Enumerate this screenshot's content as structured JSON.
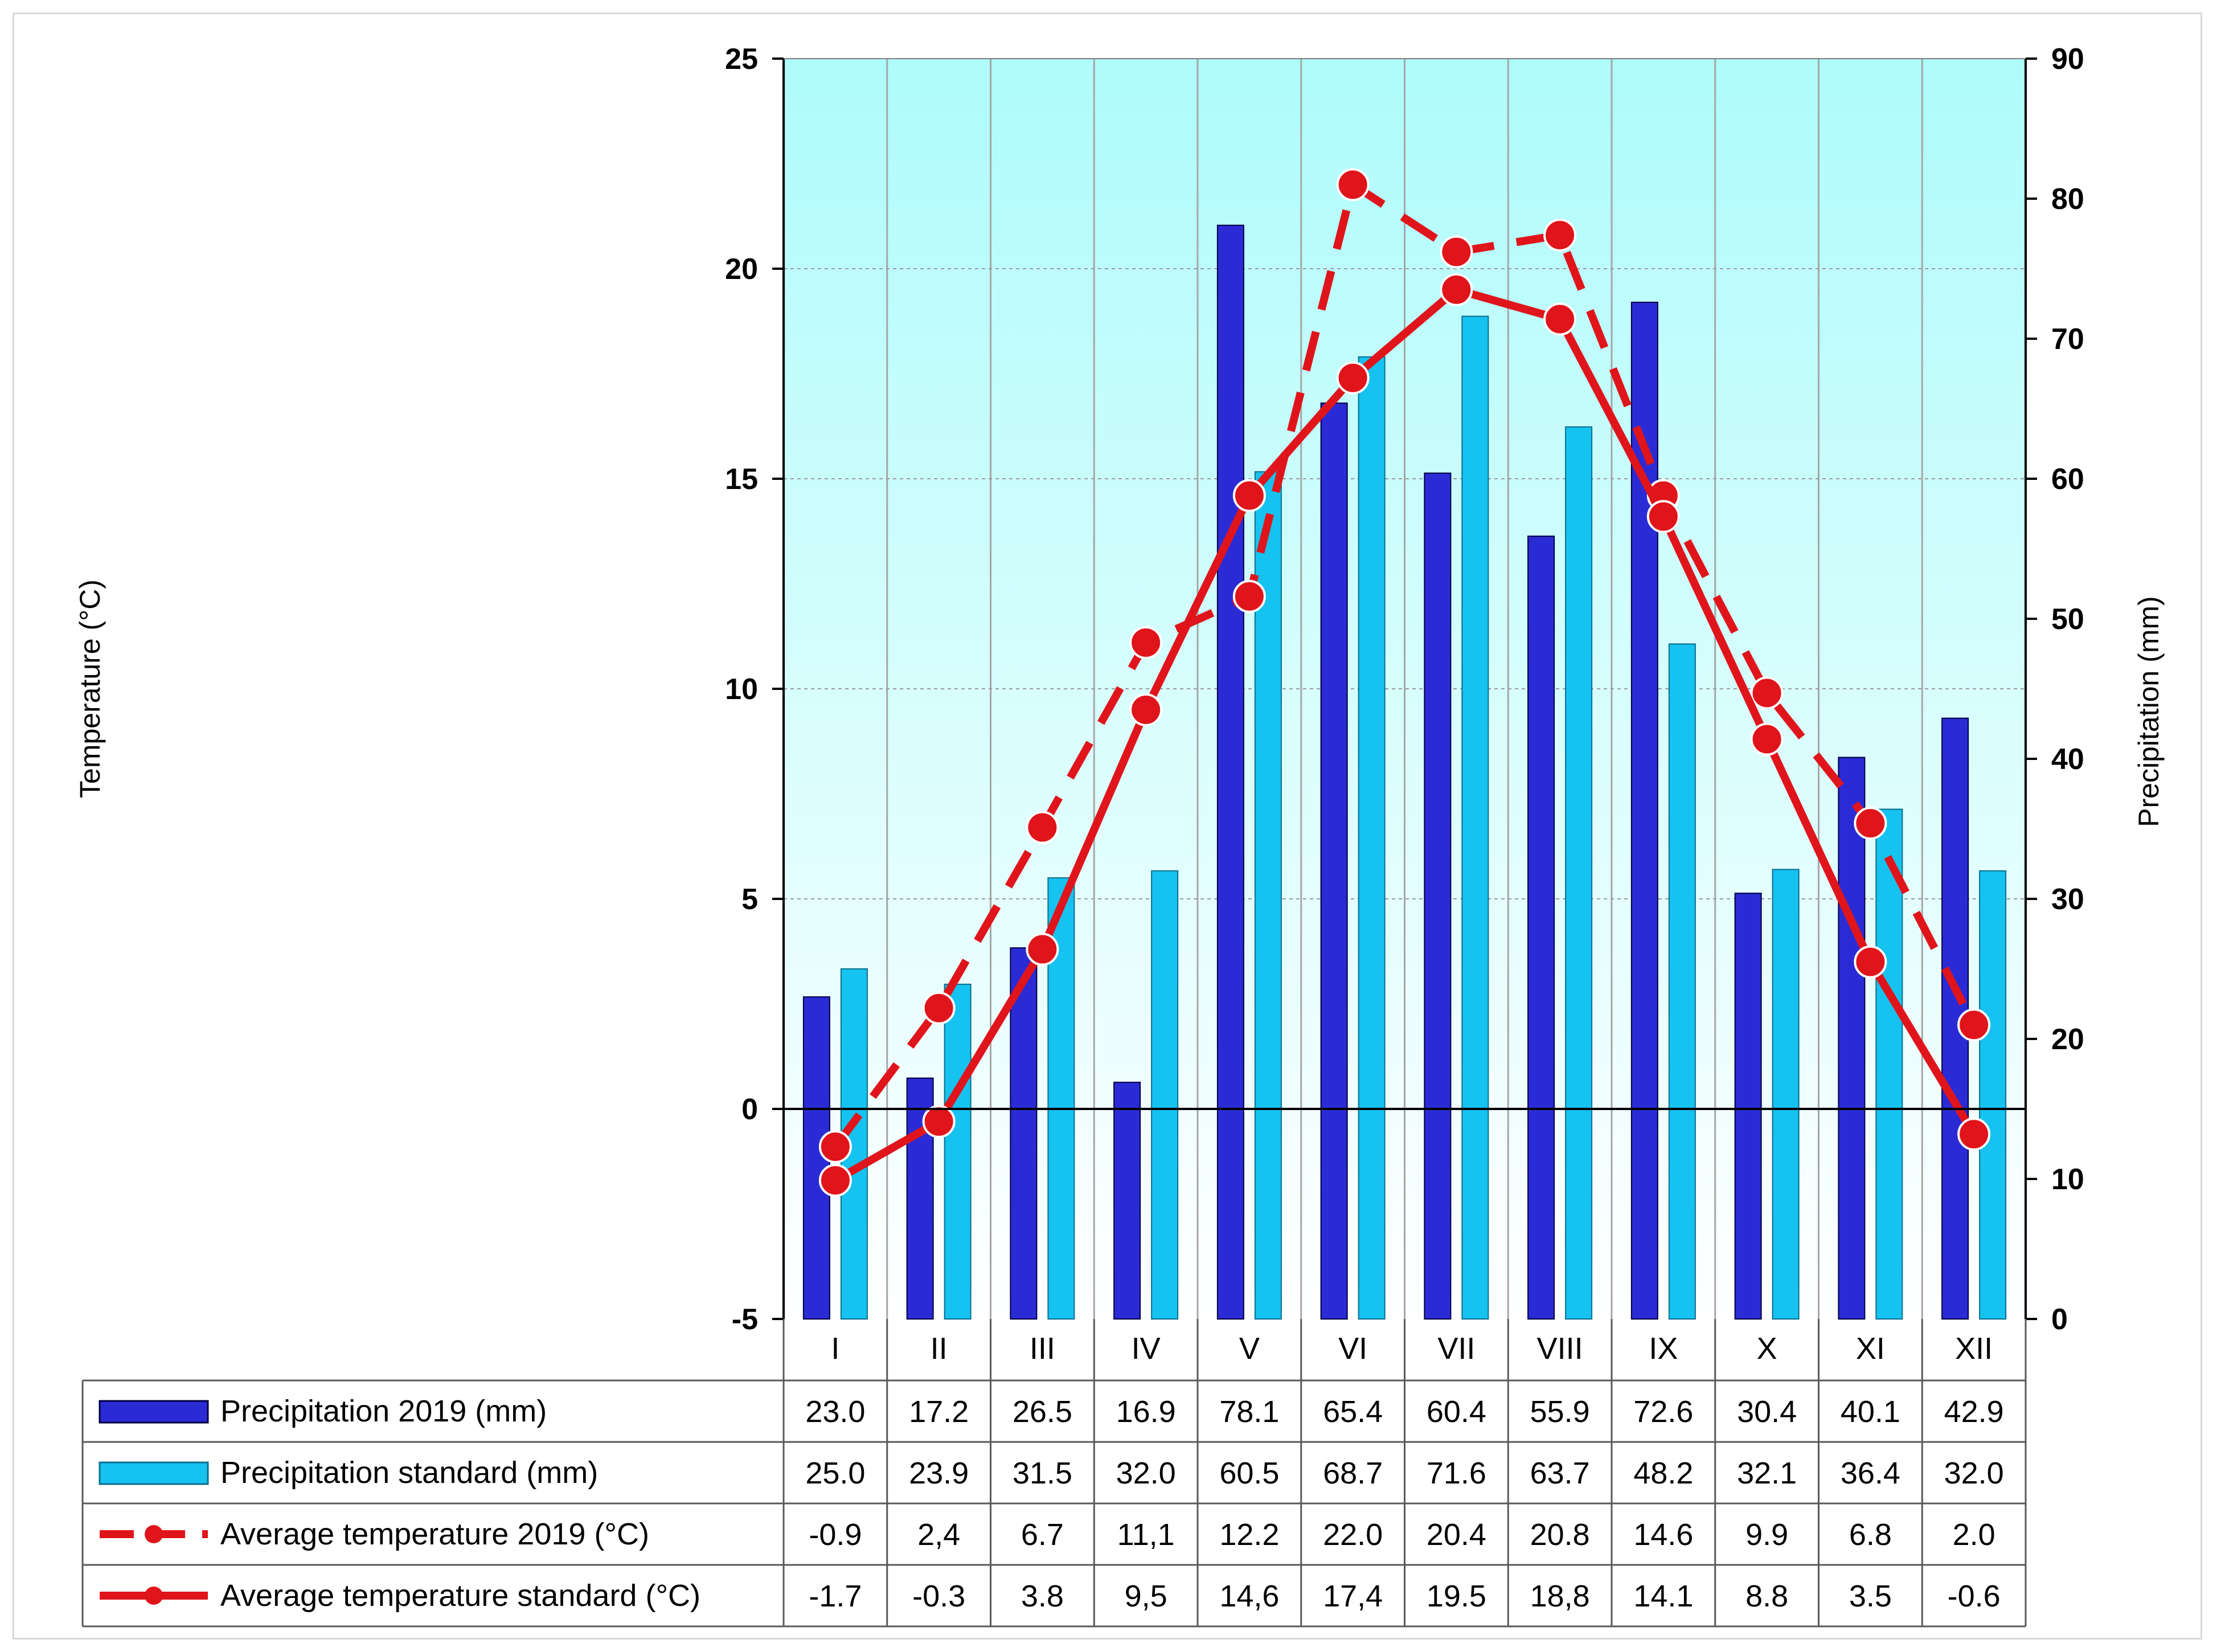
{
  "chart_data": {
    "type": "bar+line",
    "categories": [
      "I",
      "II",
      "III",
      "IV",
      "V",
      "VI",
      "VII",
      "VIII",
      "IX",
      "X",
      "XI",
      "XII"
    ],
    "left_axis": {
      "label": "Temperature (°C)",
      "min": -5,
      "max": 25,
      "step": 5,
      "ticks": [
        "-5",
        "0",
        "5",
        "10",
        "15",
        "20",
        "25"
      ]
    },
    "right_axis": {
      "label": "Precipitation (mm)",
      "min": 0,
      "max": 90,
      "step": 10,
      "ticks": [
        "0",
        "10",
        "20",
        "30",
        "40",
        "50",
        "60",
        "70",
        "80",
        "90"
      ]
    },
    "series": [
      {
        "name": "Precipitation 2019 (mm)",
        "kind": "bar",
        "axis": "right",
        "color": "#2b2bd6",
        "values": [
          23.0,
          17.2,
          26.5,
          16.9,
          78.1,
          65.4,
          60.4,
          55.9,
          72.6,
          30.4,
          40.1,
          42.9
        ],
        "labels": [
          "23.0",
          "17.2",
          "26.5",
          "16.9",
          "78.1",
          "65.4",
          "60.4",
          "55.9",
          "72.6",
          "30.4",
          "40.1",
          "42.9"
        ]
      },
      {
        "name": "Precipitation standard (mm)",
        "kind": "bar",
        "axis": "right",
        "color": "#16c2f0",
        "values": [
          25.0,
          23.9,
          31.5,
          32.0,
          60.5,
          68.7,
          71.6,
          63.7,
          48.2,
          32.1,
          36.4,
          32.0
        ],
        "labels": [
          "25.0",
          "23.9",
          "31.5",
          "32.0",
          "60.5",
          "68.7",
          "71.6",
          "63.7",
          "48.2",
          "32.1",
          "36.4",
          "32.0"
        ]
      },
      {
        "name": "Average temperature 2019 (°C)",
        "kind": "line-dashed",
        "axis": "left",
        "color": "#e0141b",
        "values": [
          -0.9,
          2.4,
          6.7,
          11.1,
          12.2,
          22.0,
          20.4,
          20.8,
          14.6,
          9.9,
          6.8,
          2.0
        ],
        "labels": [
          "-0.9",
          "2,4",
          "6.7",
          "11,1",
          "12.2",
          "22.0",
          "20.4",
          "20.8",
          "14.6",
          "9.9",
          "6.8",
          "2.0"
        ]
      },
      {
        "name": "Average temperature standard  (°C)",
        "kind": "line-solid",
        "axis": "left",
        "color": "#e0141b",
        "values": [
          -1.7,
          -0.3,
          3.8,
          9.5,
          14.6,
          17.4,
          19.5,
          18.8,
          14.1,
          8.8,
          3.5,
          -0.6
        ],
        "labels": [
          "-1.7",
          "-0.3",
          "3.8",
          "9,5",
          "14,6",
          "17,4",
          "19.5",
          "18,8",
          "14.1",
          "8.8",
          "3.5",
          "-0.6"
        ]
      }
    ],
    "grid": true,
    "background_gradient": [
      "#aefcfb",
      "#ffffff"
    ]
  }
}
